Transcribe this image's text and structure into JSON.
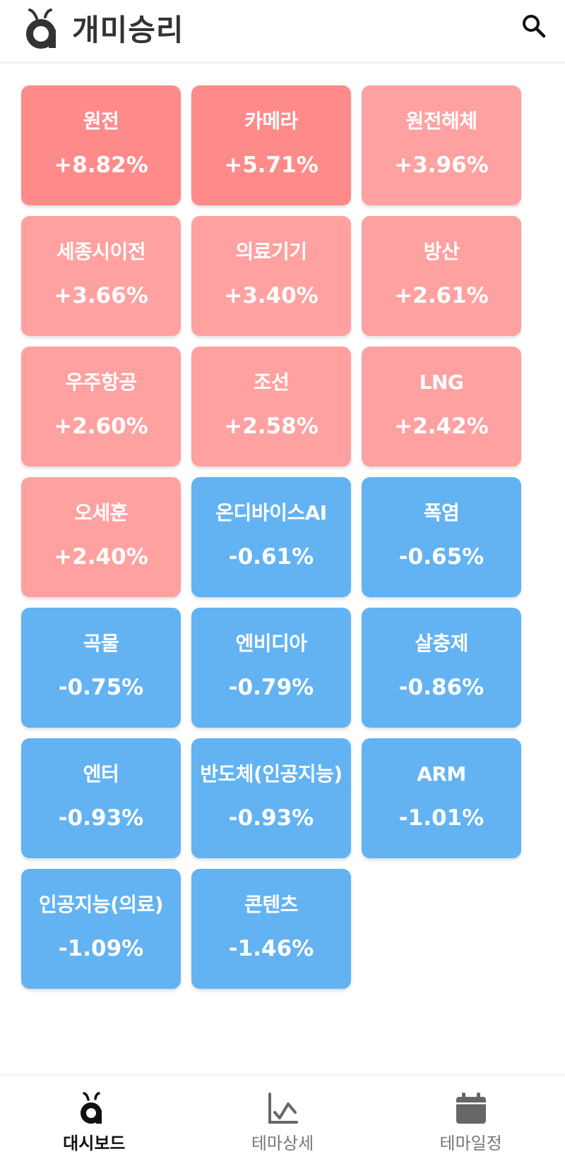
{
  "header": {
    "app_name": "개미승리",
    "search_icon": "search-icon"
  },
  "colors": {
    "strong_up": "#ff8a8a",
    "up": "#ffa1a1",
    "down": "#63b3f3",
    "logo": "#333333"
  },
  "themes": [
    {
      "name": "원전",
      "change": "+8.82%",
      "tone": "up-strong"
    },
    {
      "name": "카메라",
      "change": "+5.71%",
      "tone": "up-strong"
    },
    {
      "name": "원전해체",
      "change": "+3.96%",
      "tone": "up"
    },
    {
      "name": "세종시이전",
      "change": "+3.66%",
      "tone": "up"
    },
    {
      "name": "의료기기",
      "change": "+3.40%",
      "tone": "up"
    },
    {
      "name": "방산",
      "change": "+2.61%",
      "tone": "up"
    },
    {
      "name": "우주항공",
      "change": "+2.60%",
      "tone": "up"
    },
    {
      "name": "조선",
      "change": "+2.58%",
      "tone": "up"
    },
    {
      "name": "LNG",
      "change": "+2.42%",
      "tone": "up"
    },
    {
      "name": "오세훈",
      "change": "+2.40%",
      "tone": "up"
    },
    {
      "name": "온디바이스AI",
      "change": "-0.61%",
      "tone": "down"
    },
    {
      "name": "폭염",
      "change": "-0.65%",
      "tone": "down"
    },
    {
      "name": "곡물",
      "change": "-0.75%",
      "tone": "down"
    },
    {
      "name": "엔비디아",
      "change": "-0.79%",
      "tone": "down"
    },
    {
      "name": "살충제",
      "change": "-0.86%",
      "tone": "down"
    },
    {
      "name": "엔터",
      "change": "-0.93%",
      "tone": "down"
    },
    {
      "name": "반도체(인공지능)",
      "change": "-0.93%",
      "tone": "down"
    },
    {
      "name": "ARM",
      "change": "-1.01%",
      "tone": "down"
    },
    {
      "name": "인공지능(의료)",
      "change": "-1.09%",
      "tone": "down"
    },
    {
      "name": "콘텐츠",
      "change": "-1.46%",
      "tone": "down"
    }
  ],
  "bottom_nav": {
    "items": [
      {
        "label": "대시보드",
        "icon": "ant-logo-icon",
        "active": true
      },
      {
        "label": "테마상세",
        "icon": "line-chart-icon",
        "active": false
      },
      {
        "label": "테마일정",
        "icon": "calendar-icon",
        "active": false
      }
    ]
  }
}
